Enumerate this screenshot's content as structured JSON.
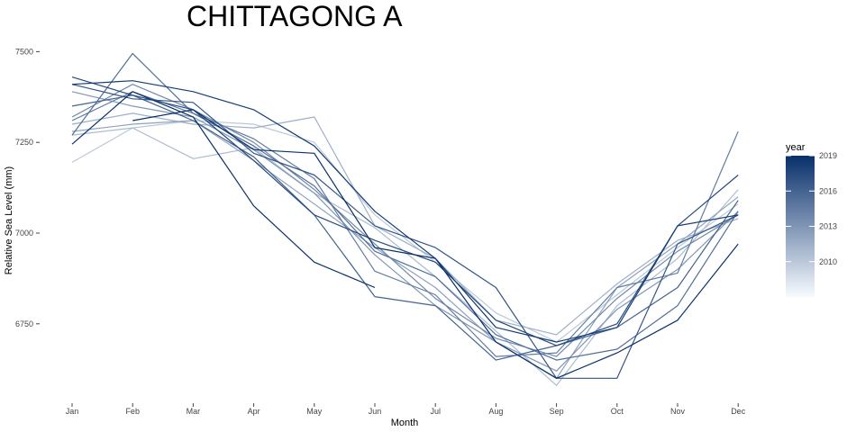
{
  "chart_data": {
    "type": "line",
    "title": "CHITTAGONG A",
    "xlabel": "Month",
    "ylabel": "Relative Sea Level (mm)",
    "categories": [
      "Jan",
      "Feb",
      "Mar",
      "Apr",
      "May",
      "Jun",
      "Jul",
      "Aug",
      "Sep",
      "Oct",
      "Nov",
      "Dec"
    ],
    "yticks": [
      6750,
      7000,
      7250,
      7500
    ],
    "ylim": [
      6560,
      7530
    ],
    "grid": false,
    "legend": {
      "title": "year",
      "position": "right",
      "ticks": [
        2010,
        2013,
        2016,
        2019
      ],
      "range": [
        2007,
        2019
      ],
      "color_low": "#f7fbff",
      "color_high": "#08306b"
    },
    "series": [
      {
        "year": 2007,
        "values": [
          7195,
          7290,
          7310,
          7300,
          7250,
          7050,
          6920,
          6780,
          6700,
          6830,
          6960,
          7080
        ]
      },
      {
        "year": 2008,
        "values": [
          7270,
          7290,
          7205,
          7235,
          7110,
          7015,
          6880,
          6730,
          6580,
          6800,
          6930,
          7120
        ]
      },
      {
        "year": 2009,
        "values": [
          7300,
          7330,
          7300,
          7290,
          7320,
          7020,
          6930,
          6760,
          6720,
          6860,
          6980,
          7040
        ]
      },
      {
        "year": 2010,
        "values": [
          7280,
          7300,
          7310,
          7200,
          7080,
          6960,
          6850,
          6700,
          6600,
          6850,
          6970,
          7100
        ]
      },
      {
        "year": 2011,
        "values": [
          7390,
          7350,
          7320,
          7230,
          7110,
          6940,
          6800,
          6700,
          6620,
          6790,
          6900,
          7060
        ]
      },
      {
        "year": 2012,
        "values": [
          7320,
          7410,
          7340,
          7250,
          7120,
          6970,
          6820,
          6710,
          6660,
          6820,
          6950,
          7050
        ]
      },
      {
        "year": 2013,
        "values": [
          7310,
          7390,
          7330,
          7260,
          7150,
          6895,
          6830,
          6660,
          6670,
          6850,
          6890,
          7280
        ]
      },
      {
        "year": 2014,
        "values": [
          7270,
          7495,
          7330,
          7240,
          7130,
          6950,
          6880,
          6720,
          6650,
          6680,
          6800,
          7060
        ]
      },
      {
        "year": 2015,
        "values": [
          7350,
          7380,
          7310,
          7210,
          7050,
          6825,
          6800,
          6650,
          6690,
          6740,
          6850,
          7090
        ]
      },
      {
        "year": 2016,
        "values": [
          7410,
          7370,
          7360,
          7220,
          7160,
          7020,
          6960,
          6850,
          6600,
          6600,
          6970,
          7050
        ]
      },
      {
        "year": 2017,
        "values": [
          7430,
          7380,
          7340,
          7200,
          7050,
          6980,
          6920,
          6760,
          6690,
          6750,
          7020,
          7160
        ]
      },
      {
        "year": 2018,
        "values": [
          7410,
          7420,
          7390,
          7340,
          7240,
          7060,
          6930,
          6740,
          6700,
          6740,
          7020,
          7050
        ]
      },
      {
        "year": 2019,
        "values": [
          7245,
          7390,
          7320,
          7075,
          6920,
          6850,
          null,
          null,
          null,
          null,
          null,
          null
        ]
      },
      {
        "year": 2019.5,
        "values": [
          null,
          7310,
          7340,
          7230,
          7220,
          6960,
          6930,
          6700,
          6600,
          6670,
          6760,
          6970
        ]
      }
    ]
  }
}
